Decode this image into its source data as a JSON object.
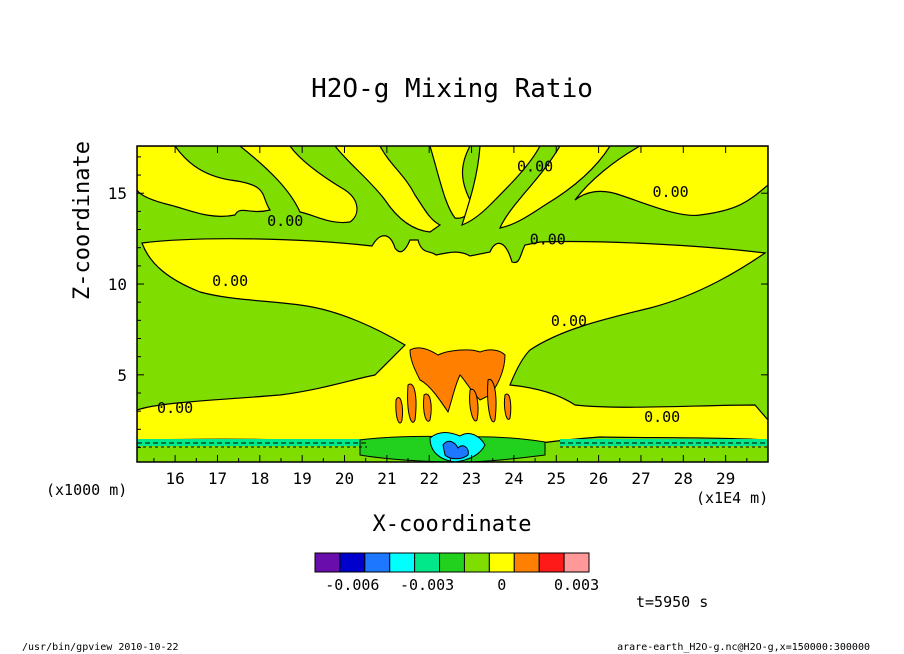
{
  "chart_data": {
    "type": "contour",
    "title": "H2O-g Mixing Ratio",
    "xlabel": "X-coordinate",
    "ylabel": "Z-coordinate",
    "x_unit": "(x1E4 m)",
    "y_unit": "(x1000 m)",
    "x_ticks": [
      16,
      17,
      18,
      19,
      20,
      21,
      22,
      23,
      24,
      25,
      26,
      27,
      28,
      29
    ],
    "y_ticks": [
      5,
      10,
      15
    ],
    "xlim": [
      15.1,
      30
    ],
    "ylim": [
      0.2,
      17.6
    ],
    "contour_labels": [
      {
        "text": "0.00",
        "x": 27.7,
        "y": 14.9
      },
      {
        "text": "0.00",
        "x": 24.5,
        "y": 16.3
      },
      {
        "text": "0.00",
        "x": 18.6,
        "y": 13.3
      },
      {
        "text": "0.00",
        "x": 24.8,
        "y": 12.3
      },
      {
        "text": "0.00",
        "x": 17.3,
        "y": 10.0
      },
      {
        "text": "0.00",
        "x": 25.3,
        "y": 7.8
      },
      {
        "text": "0.00",
        "x": 16.0,
        "y": 3.0
      },
      {
        "text": "0.00",
        "x": 27.5,
        "y": 2.5
      }
    ],
    "colorbar": {
      "colors": [
        "#6a0dad",
        "#0000cd",
        "#1e78ff",
        "#00ffff",
        "#00e88a",
        "#22d11e",
        "#7fdd00",
        "#ffff00",
        "#ff8000",
        "#ff1a1a",
        "#ff9999"
      ],
      "tick_labels": [
        "-0.006",
        "-0.003",
        "0",
        "0.003"
      ],
      "tick_values": [
        -0.006,
        -0.003,
        0,
        0.003
      ],
      "min": -0.0075,
      "max": 0.0035
    },
    "time_label": "t=5950 s"
  },
  "footer": {
    "left": "/usr/bin/gpview   2010-10-22",
    "right": "arare-earth_H2O-g.nc@H2O-g,x=150000:300000"
  }
}
